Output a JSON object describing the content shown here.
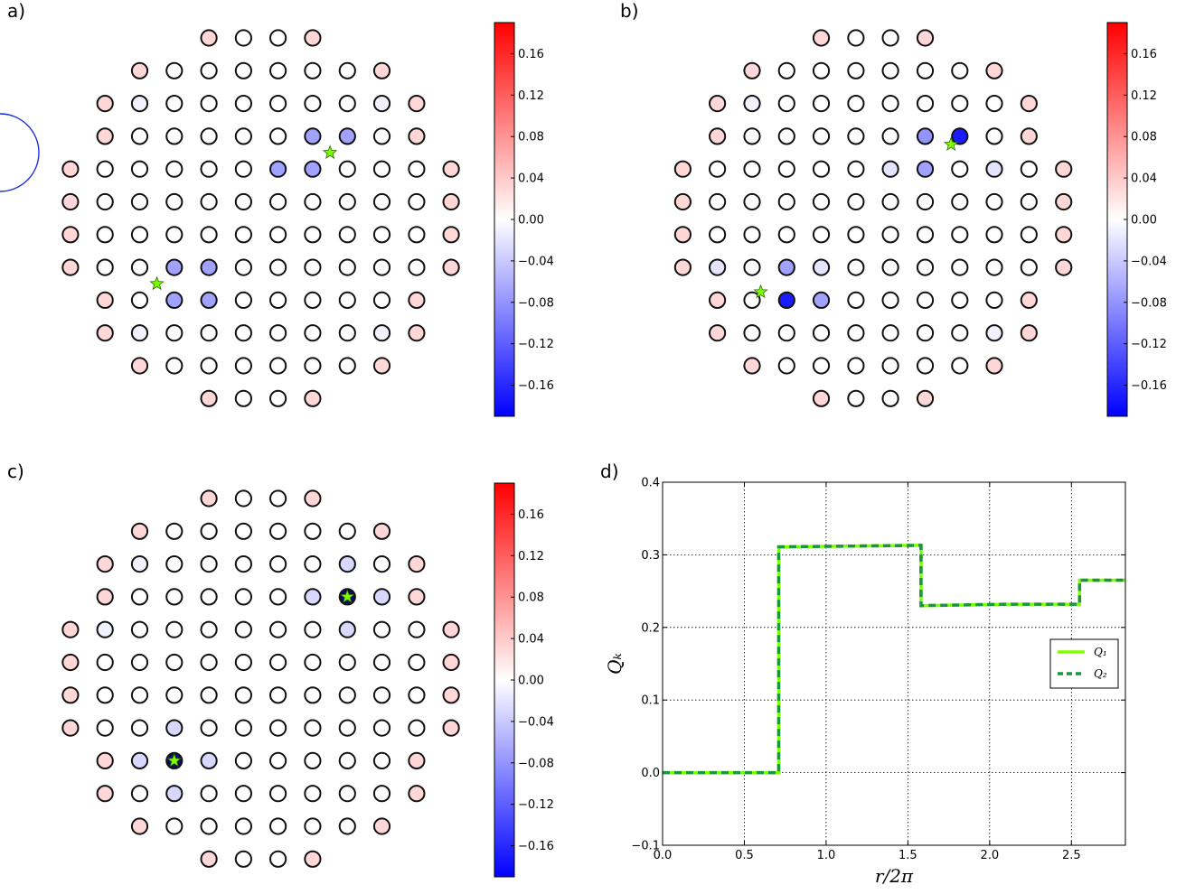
{
  "chart_data": [
    {
      "panel_label": "a)",
      "type": "heatmap",
      "layout": "circular lattice of sites",
      "row_counts": [
        4,
        8,
        10,
        10,
        12,
        12,
        12,
        12,
        10,
        10,
        8,
        4
      ],
      "default_value": 0.0,
      "edge_value": 0.03,
      "values": [
        {
          "row": 3,
          "col": 6,
          "v": -0.07
        },
        {
          "row": 3,
          "col": 7,
          "v": -0.07
        },
        {
          "row": 4,
          "col": 6,
          "v": -0.07
        },
        {
          "row": 4,
          "col": 7,
          "v": -0.07
        },
        {
          "row": 7,
          "col": 3,
          "v": -0.07
        },
        {
          "row": 7,
          "col": 4,
          "v": -0.07
        },
        {
          "row": 8,
          "col": 2,
          "v": -0.07
        },
        {
          "row": 8,
          "col": 3,
          "v": -0.07
        },
        {
          "row": 2,
          "col": 1,
          "v": -0.01
        },
        {
          "row": 2,
          "col": 8,
          "v": -0.01
        },
        {
          "row": 9,
          "col": 1,
          "v": -0.01
        },
        {
          "row": 9,
          "col": 8,
          "v": -0.01
        }
      ],
      "markers": [
        {
          "row": 3.5,
          "col": 6.5,
          "symbol": "star"
        },
        {
          "row": 7.5,
          "col": 2.5,
          "symbol": "star"
        }
      ],
      "circle": {
        "row": 3.5,
        "col": 6.5
      },
      "colorbar": {
        "vmin": -0.19,
        "vmax": 0.19,
        "ticks": [
          0.16,
          0.12,
          0.08,
          0.04,
          0.0,
          -0.04,
          -0.08,
          -0.12,
          -0.16
        ],
        "tick_labels": [
          "0.16",
          "0.12",
          "0.08",
          "0.04",
          "0.00",
          "−0.04",
          "−0.08",
          "−0.12",
          "−0.16"
        ]
      }
    },
    {
      "panel_label": "b)",
      "type": "heatmap",
      "layout": "circular lattice of sites",
      "row_counts": [
        4,
        8,
        10,
        10,
        12,
        12,
        12,
        12,
        10,
        10,
        8,
        4
      ],
      "default_value": 0.0,
      "edge_value": 0.03,
      "values": [
        {
          "row": 3,
          "col": 6,
          "v": -0.08
        },
        {
          "row": 3,
          "col": 7,
          "v": -0.17
        },
        {
          "row": 4,
          "col": 7,
          "v": -0.07
        },
        {
          "row": 4,
          "col": 6,
          "v": -0.02
        },
        {
          "row": 7,
          "col": 3,
          "v": -0.07
        },
        {
          "row": 7,
          "col": 4,
          "v": -0.02
        },
        {
          "row": 8,
          "col": 2,
          "v": -0.17
        },
        {
          "row": 8,
          "col": 3,
          "v": -0.07
        },
        {
          "row": 2,
          "col": 1,
          "v": -0.01
        },
        {
          "row": 9,
          "col": 8,
          "v": -0.01
        },
        {
          "row": 4,
          "col": 9,
          "v": -0.02
        },
        {
          "row": 7,
          "col": 1,
          "v": -0.02
        }
      ],
      "markers": [
        {
          "row": 3.25,
          "col": 6.75,
          "symbol": "star"
        },
        {
          "row": 7.75,
          "col": 2.25,
          "symbol": "star"
        }
      ],
      "colorbar": {
        "vmin": -0.19,
        "vmax": 0.19,
        "ticks": [
          0.16,
          0.12,
          0.08,
          0.04,
          0.0,
          -0.04,
          -0.08,
          -0.12,
          -0.16
        ],
        "tick_labels": [
          "0.16",
          "0.12",
          "0.08",
          "0.04",
          "0.00",
          "−0.04",
          "−0.08",
          "−0.12",
          "−0.16"
        ]
      }
    },
    {
      "panel_label": "c)",
      "type": "heatmap",
      "layout": "circular lattice of sites",
      "row_counts": [
        4,
        8,
        10,
        10,
        12,
        12,
        12,
        12,
        10,
        10,
        8,
        4
      ],
      "default_value": 0.0,
      "edge_value": 0.03,
      "values": [
        {
          "row": 3,
          "col": 7,
          "v": -0.25
        },
        {
          "row": 3,
          "col": 6,
          "v": -0.03
        },
        {
          "row": 3,
          "col": 8,
          "v": -0.03
        },
        {
          "row": 2,
          "col": 7,
          "v": -0.03
        },
        {
          "row": 4,
          "col": 8,
          "v": -0.03
        },
        {
          "row": 8,
          "col": 2,
          "v": -0.25
        },
        {
          "row": 8,
          "col": 1,
          "v": -0.03
        },
        {
          "row": 8,
          "col": 3,
          "v": -0.03
        },
        {
          "row": 7,
          "col": 3,
          "v": -0.03
        },
        {
          "row": 9,
          "col": 2,
          "v": -0.03
        },
        {
          "row": 2,
          "col": 1,
          "v": -0.01
        },
        {
          "row": 4,
          "col": 1,
          "v": -0.01
        }
      ],
      "markers": [
        {
          "row": 3,
          "col": 7,
          "symbol": "star"
        },
        {
          "row": 8,
          "col": 2,
          "symbol": "star"
        }
      ],
      "colorbar": {
        "vmin": -0.19,
        "vmax": 0.19,
        "ticks": [
          0.16,
          0.12,
          0.08,
          0.04,
          0.0,
          -0.04,
          -0.08,
          -0.12,
          -0.16
        ],
        "tick_labels": [
          "0.16",
          "0.12",
          "0.08",
          "0.04",
          "0.00",
          "−0.04",
          "−0.08",
          "−0.12",
          "−0.16"
        ]
      }
    },
    {
      "panel_label": "d)",
      "type": "line",
      "xlabel": "r/2π",
      "ylabel": "Qₖ",
      "xlim": [
        0,
        2.83
      ],
      "ylim": [
        -0.1,
        0.4
      ],
      "xticks": [
        0.0,
        0.5,
        1.0,
        1.5,
        2.0,
        2.5
      ],
      "xtick_labels": [
        "0.0",
        "0.5",
        "1.0",
        "1.5",
        "2.0",
        "2.5"
      ],
      "yticks": [
        -0.1,
        0.0,
        0.1,
        0.2,
        0.3,
        0.4
      ],
      "ytick_labels": [
        "−0.1",
        "0.0",
        "0.1",
        "0.2",
        "0.3",
        "0.4"
      ],
      "grid": true,
      "legend_position": "right",
      "series": [
        {
          "name": "Q₁",
          "style": "solid",
          "color": "#7FFF00",
          "x": [
            0,
            0.71,
            0.71,
            1.58,
            1.58,
            2.1,
            2.55,
            2.55,
            2.83
          ],
          "y": [
            0,
            0,
            0.311,
            0.313,
            0.23,
            0.232,
            0.232,
            0.265,
            0.265
          ]
        },
        {
          "name": "Q₂",
          "style": "dashed",
          "color": "#1a9641",
          "x": [
            0,
            0.71,
            0.71,
            1.58,
            1.58,
            2.1,
            2.55,
            2.55,
            2.83
          ],
          "y": [
            0,
            0,
            0.311,
            0.313,
            0.23,
            0.232,
            0.232,
            0.265,
            0.265
          ]
        }
      ]
    }
  ]
}
